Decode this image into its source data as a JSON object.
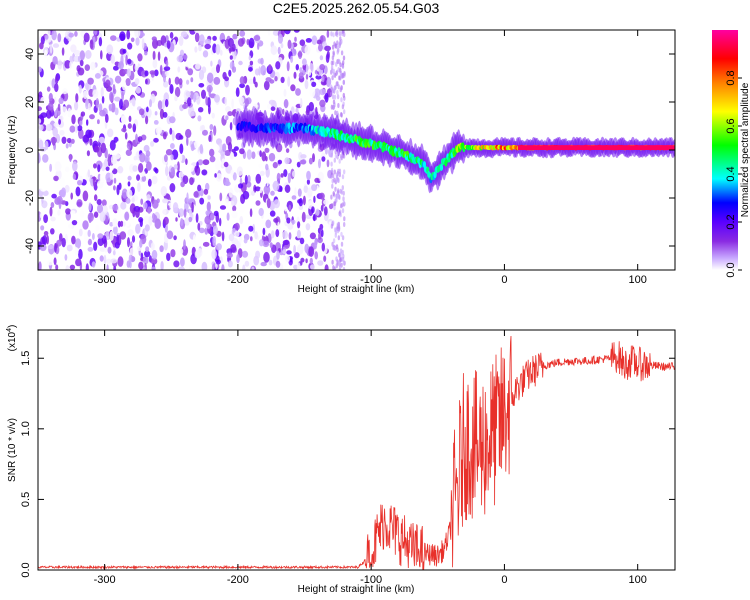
{
  "title": "C2E5.2025.262.05.54.G03",
  "chart_data": [
    {
      "type": "heatmap",
      "xlabel": "Height of straight line (km)",
      "ylabel": "Frequency (Hz)",
      "xlim": [
        -350,
        128
      ],
      "ylim": [
        -50,
        50
      ],
      "xticks": [
        -300,
        -200,
        -100,
        0,
        100
      ],
      "yticks": [
        -40,
        -20,
        0,
        20,
        40
      ],
      "colorbar": {
        "label": "Normalized spectral amplitude",
        "range": [
          0.0,
          1.0
        ],
        "ticks": [
          0.0,
          0.2,
          0.4,
          0.6,
          0.8
        ],
        "colormap": [
          "#ffffff",
          "#c8a8ff",
          "#8a2be2",
          "#5a00ff",
          "#0000ff",
          "#00ffff",
          "#00ff00",
          "#ffff00",
          "#ff8000",
          "#ff0000",
          "#ff00a0"
        ]
      },
      "noise_region": {
        "x": [
          -350,
          -130
        ],
        "y": [
          -50,
          50
        ],
        "amplitude": [
          0.0,
          0.2
        ]
      },
      "signal_track": [
        {
          "x": -200,
          "y": 10,
          "amp": 0.25
        },
        {
          "x": -175,
          "y": 9,
          "amp": 0.3
        },
        {
          "x": -150,
          "y": 9,
          "amp": 0.35
        },
        {
          "x": -130,
          "y": 7,
          "amp": 0.45
        },
        {
          "x": -110,
          "y": 4,
          "amp": 0.5
        },
        {
          "x": -90,
          "y": 1,
          "amp": 0.5
        },
        {
          "x": -75,
          "y": -2,
          "amp": 0.5
        },
        {
          "x": -60,
          "y": -6,
          "amp": 0.45
        },
        {
          "x": -55,
          "y": -12,
          "amp": 0.4
        },
        {
          "x": -45,
          "y": -5,
          "amp": 0.45
        },
        {
          "x": -35,
          "y": 1,
          "amp": 0.55
        },
        {
          "x": -20,
          "y": 1,
          "amp": 0.7
        },
        {
          "x": 0,
          "y": 1,
          "amp": 0.8
        },
        {
          "x": 40,
          "y": 1,
          "amp": 0.9
        },
        {
          "x": 80,
          "y": 1,
          "amp": 0.95
        },
        {
          "x": 128,
          "y": 1,
          "amp": 0.9
        }
      ]
    },
    {
      "type": "line",
      "xlabel": "Height of straight line (km)",
      "ylabel": "SNR (10 * v/v)",
      "y_scale_label": "(x10",
      "y_scale_exponent": "4",
      "xlim": [
        -350,
        128
      ],
      "ylim": [
        0,
        1.7
      ],
      "xticks": [
        -300,
        -200,
        -100,
        0,
        100
      ],
      "yticks": [
        "0.0",
        "0.5",
        "1.0",
        "1.5"
      ],
      "series": [
        {
          "color": "#e8302a",
          "x": [
            -350,
            -300,
            -250,
            -200,
            -150,
            -110,
            -100,
            -95,
            -90,
            -85,
            -80,
            -70,
            -60,
            -50,
            -45,
            -40,
            -35,
            -30,
            -25,
            -20,
            -15,
            -10,
            -5,
            0,
            5,
            10,
            20,
            30,
            40,
            50,
            60,
            70,
            80,
            85,
            90,
            95,
            100,
            110,
            120,
            128
          ],
          "y": [
            0.02,
            0.02,
            0.02,
            0.02,
            0.02,
            0.02,
            0.1,
            0.25,
            0.35,
            0.3,
            0.25,
            0.15,
            0.12,
            0.1,
            0.15,
            0.3,
            0.6,
            0.9,
            0.9,
            0.85,
            0.9,
            0.95,
            1.0,
            1.1,
            1.2,
            1.3,
            1.4,
            1.45,
            1.47,
            1.48,
            1.48,
            1.49,
            1.5,
            1.52,
            1.45,
            1.48,
            1.46,
            1.45,
            1.44,
            1.44
          ]
        }
      ]
    }
  ]
}
